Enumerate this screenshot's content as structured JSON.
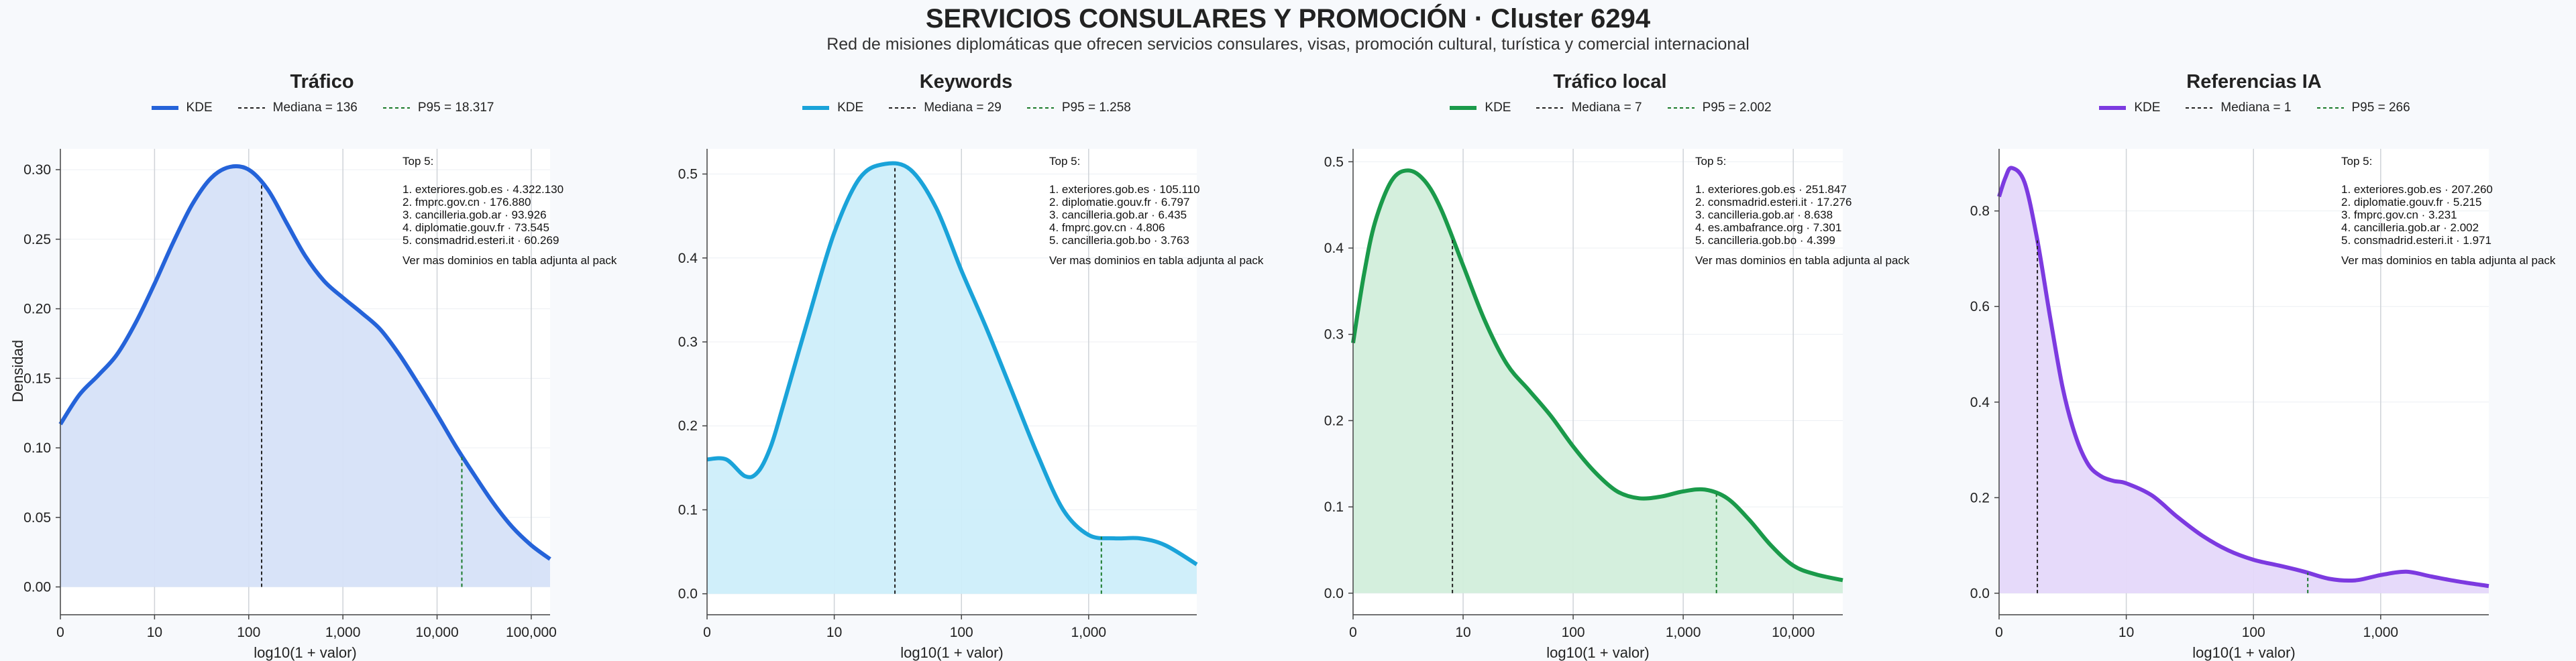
{
  "title": "SERVICIOS CONSULARES Y PROMOCIÓN · Cluster 6294",
  "subtitle": "Red de misiones diplomáticas que ofrecen servicios consulares, visas, promoción cultural, turística y comercial internacional",
  "ylabel": "Densidad",
  "chart_data": [
    {
      "type": "area",
      "title": "Tráfico",
      "color": "#2563d9",
      "fill": "#d6e2f8",
      "xlabel": "log10(1 + valor)",
      "ylabel": "Densidad",
      "xlim": [
        0,
        5.2
      ],
      "ylim": [
        -0.02,
        0.315
      ],
      "x_ticks": [
        [
          0,
          "0"
        ],
        [
          1,
          "10"
        ],
        [
          2,
          "100"
        ],
        [
          3,
          "1,000"
        ],
        [
          4,
          "10,000"
        ],
        [
          5,
          "100,000"
        ]
      ],
      "y_ticks": [
        [
          0,
          "0.00"
        ],
        [
          0.05,
          "0.05"
        ],
        [
          0.1,
          "0.10"
        ],
        [
          0.15,
          "0.15"
        ],
        [
          0.2,
          "0.20"
        ],
        [
          0.25,
          "0.25"
        ],
        [
          0.3,
          "0.30"
        ]
      ],
      "legend": {
        "kde": "KDE",
        "median": "Mediana = 136",
        "p95": "P95 = 18.317"
      },
      "median": 2.137,
      "p95": 4.263,
      "kde_x": [
        0,
        0.2,
        0.4,
        0.6,
        0.8,
        1.0,
        1.2,
        1.4,
        1.6,
        1.8,
        2.0,
        2.2,
        2.4,
        2.6,
        2.8,
        3.0,
        3.2,
        3.4,
        3.6,
        3.8,
        4.0,
        4.2,
        4.4,
        4.6,
        4.8,
        5.0,
        5.2
      ],
      "kde_y": [
        0.117,
        0.138,
        0.152,
        0.167,
        0.19,
        0.218,
        0.248,
        0.275,
        0.294,
        0.302,
        0.3,
        0.286,
        0.262,
        0.238,
        0.22,
        0.208,
        0.197,
        0.185,
        0.167,
        0.146,
        0.124,
        0.101,
        0.08,
        0.06,
        0.043,
        0.03,
        0.02
      ],
      "top5_title": "Top 5:",
      "top5": [
        "1. exteriores.gob.es · 4.322.130",
        "2. fmprc.gov.cn · 176.880",
        "3. cancilleria.gob.ar · 93.926",
        "4. diplomatie.gouv.fr · 73.545",
        "5. consmadrid.esteri.it · 60.269"
      ],
      "note": "Ver mas dominios en tabla adjunta al pack"
    },
    {
      "type": "area",
      "title": "Keywords",
      "color": "#1aa3d9",
      "fill": "#cdeefa",
      "xlabel": "log10(1 + valor)",
      "ylabel": "",
      "xlim": [
        0,
        3.85
      ],
      "ylim": [
        -0.025,
        0.53
      ],
      "x_ticks": [
        [
          0,
          "0"
        ],
        [
          1,
          "10"
        ],
        [
          2,
          "100"
        ],
        [
          3,
          "1,000"
        ]
      ],
      "y_ticks": [
        [
          0,
          "0.0"
        ],
        [
          0.1,
          "0.1"
        ],
        [
          0.2,
          "0.2"
        ],
        [
          0.3,
          "0.3"
        ],
        [
          0.4,
          "0.4"
        ],
        [
          0.5,
          "0.5"
        ]
      ],
      "legend": {
        "kde": "KDE",
        "median": "Mediana = 29",
        "p95": "P95 = 1.258"
      },
      "median": 1.477,
      "p95": 3.1,
      "kde_x": [
        0,
        0.15,
        0.3,
        0.4,
        0.5,
        0.6,
        0.8,
        1.0,
        1.2,
        1.4,
        1.6,
        1.8,
        2.0,
        2.2,
        2.4,
        2.6,
        2.8,
        3.0,
        3.2,
        3.4,
        3.6,
        3.85
      ],
      "kde_y": [
        0.16,
        0.16,
        0.14,
        0.145,
        0.175,
        0.225,
        0.33,
        0.43,
        0.495,
        0.512,
        0.505,
        0.46,
        0.385,
        0.315,
        0.24,
        0.165,
        0.1,
        0.07,
        0.066,
        0.066,
        0.058,
        0.035
      ],
      "top5_title": "Top 5:",
      "top5": [
        "1. exteriores.gob.es · 105.110",
        "2. diplomatie.gouv.fr · 6.797",
        "3. cancilleria.gob.ar · 6.435",
        "4. fmprc.gov.cn · 4.806",
        "5. cancilleria.gob.bo · 3.763"
      ],
      "note": "Ver mas dominios en tabla adjunta al pack"
    },
    {
      "type": "area",
      "title": "Tráfico local",
      "color": "#1a9a4a",
      "fill": "#d2eedb",
      "xlabel": "log10(1 + valor)",
      "ylabel": "",
      "xlim": [
        0,
        4.45
      ],
      "ylim": [
        -0.025,
        0.515
      ],
      "x_ticks": [
        [
          0,
          "0"
        ],
        [
          1,
          "10"
        ],
        [
          2,
          "100"
        ],
        [
          3,
          "1,000"
        ],
        [
          4,
          "10,000"
        ]
      ],
      "y_ticks": [
        [
          0,
          "0.0"
        ],
        [
          0.1,
          "0.1"
        ],
        [
          0.2,
          "0.2"
        ],
        [
          0.3,
          "0.3"
        ],
        [
          0.4,
          "0.4"
        ],
        [
          0.5,
          "0.5"
        ]
      ],
      "legend": {
        "kde": "KDE",
        "median": "Mediana = 7",
        "p95": "P95 = 2.002"
      },
      "median": 0.903,
      "p95": 3.302,
      "kde_x": [
        0,
        0.1,
        0.2,
        0.35,
        0.5,
        0.65,
        0.8,
        1.0,
        1.2,
        1.4,
        1.6,
        1.8,
        2.0,
        2.2,
        2.4,
        2.6,
        2.8,
        3.0,
        3.2,
        3.4,
        3.6,
        3.8,
        4.0,
        4.2,
        4.45
      ],
      "kde_y": [
        0.29,
        0.37,
        0.43,
        0.478,
        0.49,
        0.478,
        0.445,
        0.38,
        0.315,
        0.265,
        0.235,
        0.205,
        0.17,
        0.14,
        0.118,
        0.11,
        0.112,
        0.118,
        0.12,
        0.11,
        0.085,
        0.055,
        0.032,
        0.022,
        0.015
      ],
      "top5_title": "Top 5:",
      "top5": [
        "1. exteriores.gob.es · 251.847",
        "2. consmadrid.esteri.it · 17.276",
        "3. cancilleria.gob.ar · 8.638",
        "4. es.ambafrance.org · 7.301",
        "5. cancilleria.gob.bo · 4.399"
      ],
      "note": "Ver mas dominios en tabla adjunta al pack"
    },
    {
      "type": "area",
      "title": "Referencias IA",
      "color": "#7c3ae0",
      "fill": "#e5d8fa",
      "xlabel": "log10(1 + valor)",
      "ylabel": "",
      "xlim": [
        0,
        3.85
      ],
      "ylim": [
        -0.045,
        0.93
      ],
      "x_ticks": [
        [
          0,
          "0"
        ],
        [
          1,
          "10"
        ],
        [
          2,
          "100"
        ],
        [
          3,
          "1,000"
        ]
      ],
      "y_ticks": [
        [
          0,
          "0.0"
        ],
        [
          0.2,
          "0.2"
        ],
        [
          0.4,
          "0.4"
        ],
        [
          0.6,
          "0.6"
        ],
        [
          0.8,
          "0.8"
        ]
      ],
      "legend": {
        "kde": "KDE",
        "median": "Mediana = 1",
        "p95": "P95 = 266"
      },
      "median": 0.301,
      "p95": 2.427,
      "kde_x": [
        0,
        0.05,
        0.1,
        0.2,
        0.3,
        0.4,
        0.5,
        0.6,
        0.7,
        0.8,
        0.9,
        1.0,
        1.2,
        1.4,
        1.6,
        1.8,
        2.0,
        2.2,
        2.4,
        2.6,
        2.8,
        3.0,
        3.2,
        3.4,
        3.6,
        3.85
      ],
      "kde_y": [
        0.83,
        0.87,
        0.89,
        0.86,
        0.74,
        0.58,
        0.43,
        0.33,
        0.27,
        0.245,
        0.235,
        0.23,
        0.205,
        0.16,
        0.12,
        0.09,
        0.07,
        0.058,
        0.045,
        0.03,
        0.027,
        0.038,
        0.045,
        0.035,
        0.025,
        0.015
      ],
      "top5_title": "Top 5:",
      "top5": [
        "1. exteriores.gob.es · 207.260",
        "2. diplomatie.gouv.fr · 5.215",
        "3. fmprc.gov.cn · 3.231",
        "4. cancilleria.gob.ar · 2.002",
        "5. consmadrid.esteri.it · 1.971"
      ],
      "note": "Ver mas dominios en tabla adjunta al pack"
    }
  ]
}
